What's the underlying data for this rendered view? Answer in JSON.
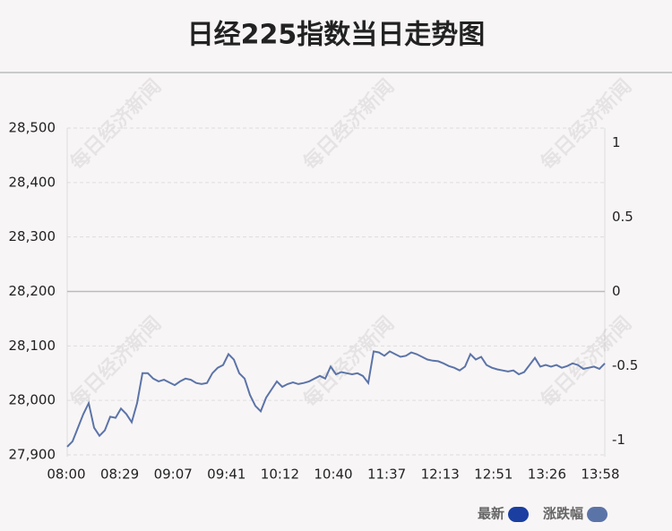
{
  "chart_data": {
    "type": "line",
    "title": "日经225指数当日走势图",
    "watermark": "每日经济新闻",
    "xticks": [
      "08:00",
      "08:29",
      "09:07",
      "09:41",
      "10:12",
      "10:40",
      "11:37",
      "12:13",
      "12:51",
      "13:26",
      "13:58"
    ],
    "ylim": [
      27900,
      28500
    ],
    "yticks": [
      {
        "value": 27900,
        "label": "27,900"
      },
      {
        "value": 28000,
        "label": "28,000"
      },
      {
        "value": 28100,
        "label": "28,100"
      },
      {
        "value": 28200,
        "label": "28,200"
      },
      {
        "value": 28300,
        "label": "28,300"
      },
      {
        "value": 28400,
        "label": "28,400"
      },
      {
        "value": 28500,
        "label": "28,500"
      }
    ],
    "y2lim": [
      -1.1,
      1.1
    ],
    "y2ticks": [
      -1,
      -0.5,
      0,
      0.5,
      1
    ],
    "grid": true,
    "series": [
      {
        "color": "#5b74a8",
        "values": [
          27915,
          27925,
          27950,
          27975,
          27995,
          27950,
          27935,
          27945,
          27970,
          27968,
          27985,
          27975,
          27960,
          27995,
          28050,
          28050,
          28040,
          28035,
          28038,
          28033,
          28028,
          28035,
          28040,
          28038,
          28032,
          28030,
          28032,
          28050,
          28060,
          28065,
          28085,
          28075,
          28050,
          28040,
          28010,
          27990,
          27980,
          28005,
          28020,
          28035,
          28025,
          28030,
          28033,
          28030,
          28032,
          28035,
          28040,
          28045,
          28040,
          28062,
          28048,
          28052,
          28050,
          28048,
          28050,
          28045,
          28032,
          28090,
          28088,
          28082,
          28090,
          28085,
          28080,
          28082,
          28088,
          28085,
          28080,
          28075,
          28073,
          28072,
          28068,
          28063,
          28060,
          28055,
          28062,
          28085,
          28075,
          28080,
          28065,
          28060,
          28057,
          28055,
          28053,
          28055,
          28048,
          28052,
          28065,
          28078,
          28062,
          28065,
          28062,
          28065,
          28060,
          28063,
          28068,
          28065,
          28058,
          28060,
          28062,
          28058,
          28068
        ]
      }
    ],
    "legend": [
      {
        "name": "最新",
        "color": "#1a3fa0"
      },
      {
        "name": "涨跌幅",
        "color": "#5b74a8"
      }
    ]
  }
}
